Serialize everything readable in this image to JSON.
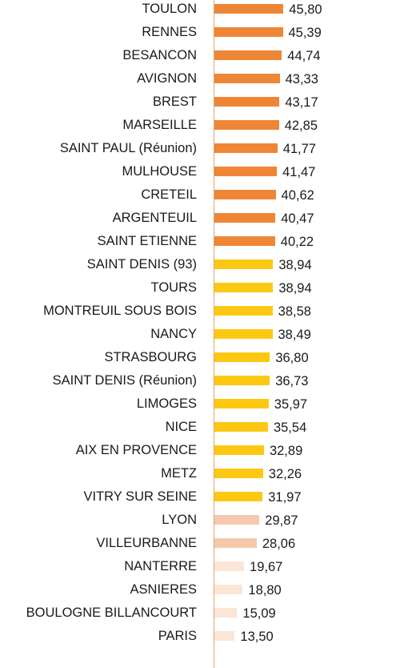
{
  "chart_data": {
    "type": "bar",
    "orientation": "horizontal",
    "categories": [
      "TOULON",
      "RENNES",
      "BESANCON",
      "AVIGNON",
      "BREST",
      "MARSEILLE",
      "SAINT PAUL (Réunion)",
      "MULHOUSE",
      "CRETEIL",
      "ARGENTEUIL",
      "SAINT ETIENNE",
      "SAINT DENIS (93)",
      "TOURS",
      "MONTREUIL SOUS BOIS",
      "NANCY",
      "STRASBOURG",
      "SAINT DENIS (Réunion)",
      "LIMOGES",
      "NICE",
      "AIX EN PROVENCE",
      "METZ",
      "VITRY SUR SEINE",
      "LYON",
      "VILLEURBANNE",
      "NANTERRE",
      "ASNIERES",
      "BOULOGNE BILLANCOURT",
      "PARIS"
    ],
    "values": [
      45.8,
      45.39,
      44.74,
      43.33,
      43.17,
      42.85,
      41.77,
      41.47,
      40.62,
      40.47,
      40.22,
      38.94,
      38.94,
      38.58,
      38.49,
      36.8,
      36.73,
      35.97,
      35.54,
      32.89,
      32.26,
      31.97,
      29.87,
      28.06,
      19.67,
      18.8,
      15.09,
      13.5
    ],
    "value_labels": [
      "45,80",
      "45,39",
      "44,74",
      "43,33",
      "43,17",
      "42,85",
      "41,77",
      "41,47",
      "40,62",
      "40,47",
      "40,22",
      "38,94",
      "38,94",
      "38,58",
      "38,49",
      "36,80",
      "36,73",
      "35,97",
      "35,54",
      "32,89",
      "32,26",
      "31,97",
      "29,87",
      "28,06",
      "19,67",
      "18,80",
      "15,09",
      "13,50"
    ],
    "bar_colors": [
      "#ee8636",
      "#ee8636",
      "#ee8636",
      "#ee8636",
      "#ee8636",
      "#ee8636",
      "#ee8636",
      "#ee8636",
      "#ee8636",
      "#ee8636",
      "#ee8636",
      "#fcc812",
      "#fcc812",
      "#fcc812",
      "#fcc812",
      "#fcc812",
      "#fcc812",
      "#fcc812",
      "#fcc812",
      "#fcc812",
      "#fcc812",
      "#fcc812",
      "#f5c9ac",
      "#f5c9ac",
      "#fbe5d7",
      "#fbe5d7",
      "#fbe5d7",
      "#fbe5d7"
    ],
    "xlim": [
      0,
      50
    ],
    "grid": false,
    "legend": "none"
  }
}
